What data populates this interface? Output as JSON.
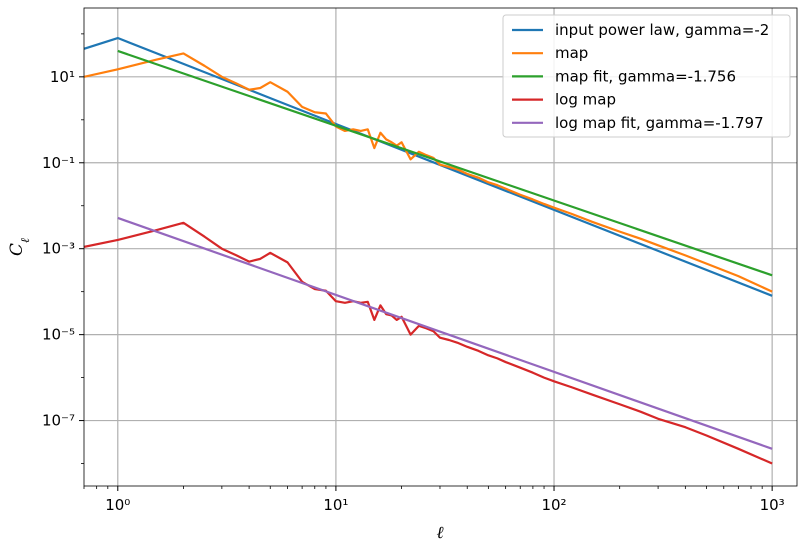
{
  "chart_data": {
    "type": "line",
    "xscale": "log",
    "yscale": "log",
    "xlabel": "ℓ",
    "ylabel": "C_ℓ",
    "xlim": [
      0.7,
      1300
    ],
    "ylim": [
      3e-09,
      400
    ],
    "grid": true,
    "legend_position": "top-right",
    "x_ticks": [
      {
        "value": 1,
        "label": "10⁰"
      },
      {
        "value": 10,
        "label": "10¹"
      },
      {
        "value": 100,
        "label": "10²"
      },
      {
        "value": 1000,
        "label": "10³"
      }
    ],
    "y_ticks": [
      {
        "value": 10,
        "label": "10¹"
      },
      {
        "value": 0.1,
        "label": "10⁻¹"
      },
      {
        "value": 0.001,
        "label": "10⁻³"
      },
      {
        "value": 1e-05,
        "label": "10⁻⁵"
      },
      {
        "value": 1e-07,
        "label": "10⁻⁷"
      }
    ],
    "series": [
      {
        "name": "input power law, gamma=-2",
        "color": "#1f77b4",
        "x": [
          0.7,
          1,
          2,
          3,
          5,
          10,
          30,
          100,
          300,
          1000
        ],
        "y": [
          45,
          80,
          20,
          8.9,
          3.2,
          0.8,
          0.089,
          0.008,
          0.00089,
          8e-05
        ]
      },
      {
        "name": "map",
        "color": "#ff7f0e",
        "x": [
          0.7,
          1,
          1.5,
          2,
          2.5,
          3,
          3.5,
          4,
          4.5,
          5,
          6,
          7,
          8,
          9,
          10,
          11,
          12,
          13,
          14,
          15,
          16,
          17,
          18,
          19,
          20,
          22,
          24,
          26,
          28,
          30,
          33,
          36,
          40,
          45,
          50,
          55,
          60,
          70,
          80,
          90,
          100,
          120,
          150,
          200,
          250,
          300,
          400,
          500,
          700,
          1000
        ],
        "y": [
          10,
          15,
          25,
          35,
          18,
          10,
          7,
          5,
          5.5,
          7.5,
          4.5,
          2,
          1.5,
          1.4,
          0.7,
          0.55,
          0.6,
          0.55,
          0.6,
          0.22,
          0.5,
          0.35,
          0.3,
          0.25,
          0.3,
          0.12,
          0.18,
          0.15,
          0.13,
          0.09,
          0.08,
          0.07,
          0.055,
          0.045,
          0.035,
          0.03,
          0.025,
          0.018,
          0.014,
          0.011,
          0.009,
          0.0065,
          0.0042,
          0.0025,
          0.0017,
          0.0012,
          0.0007,
          0.00045,
          0.00023,
          0.0001
        ]
      },
      {
        "name": "map fit, gamma=-1.756",
        "color": "#2ca02c",
        "x": [
          1,
          1000
        ],
        "y": [
          40,
          0.00024
        ]
      },
      {
        "name": "log map",
        "color": "#d62728",
        "x": [
          0.7,
          1,
          1.5,
          2,
          2.5,
          3,
          3.5,
          4,
          4.5,
          5,
          6,
          7,
          8,
          9,
          10,
          11,
          12,
          13,
          14,
          15,
          16,
          17,
          18,
          19,
          20,
          22,
          24,
          26,
          28,
          30,
          33,
          36,
          40,
          45,
          50,
          55,
          60,
          70,
          80,
          90,
          100,
          120,
          150,
          200,
          250,
          300,
          400,
          500,
          700,
          1000
        ],
        "y": [
          0.0011,
          0.0016,
          0.0027,
          0.004,
          0.0019,
          0.001,
          0.0007,
          0.0005,
          0.00058,
          0.0008,
          0.00048,
          0.00017,
          0.000115,
          0.000105,
          6e-05,
          5.5e-05,
          6e-05,
          5.5e-05,
          5.8e-05,
          2.2e-05,
          4.8e-05,
          3e-05,
          2.8e-05,
          2.2e-05,
          2.6e-05,
          1e-05,
          1.6e-05,
          1.4e-05,
          1.2e-05,
          8.5e-06,
          7.5e-06,
          6.5e-06,
          5.2e-06,
          4.2e-06,
          3.3e-06,
          2.8e-06,
          2.3e-06,
          1.7e-06,
          1.3e-06,
          1e-06,
          8.2e-07,
          6e-07,
          4e-07,
          2.4e-07,
          1.6e-07,
          1.1e-07,
          7e-08,
          4.5e-08,
          2.2e-08,
          1e-08
        ]
      },
      {
        "name": "log map fit, gamma=-1.797",
        "color": "#9467bd",
        "x": [
          1,
          1000
        ],
        "y": [
          0.0052,
          2.2e-08
        ]
      }
    ]
  }
}
